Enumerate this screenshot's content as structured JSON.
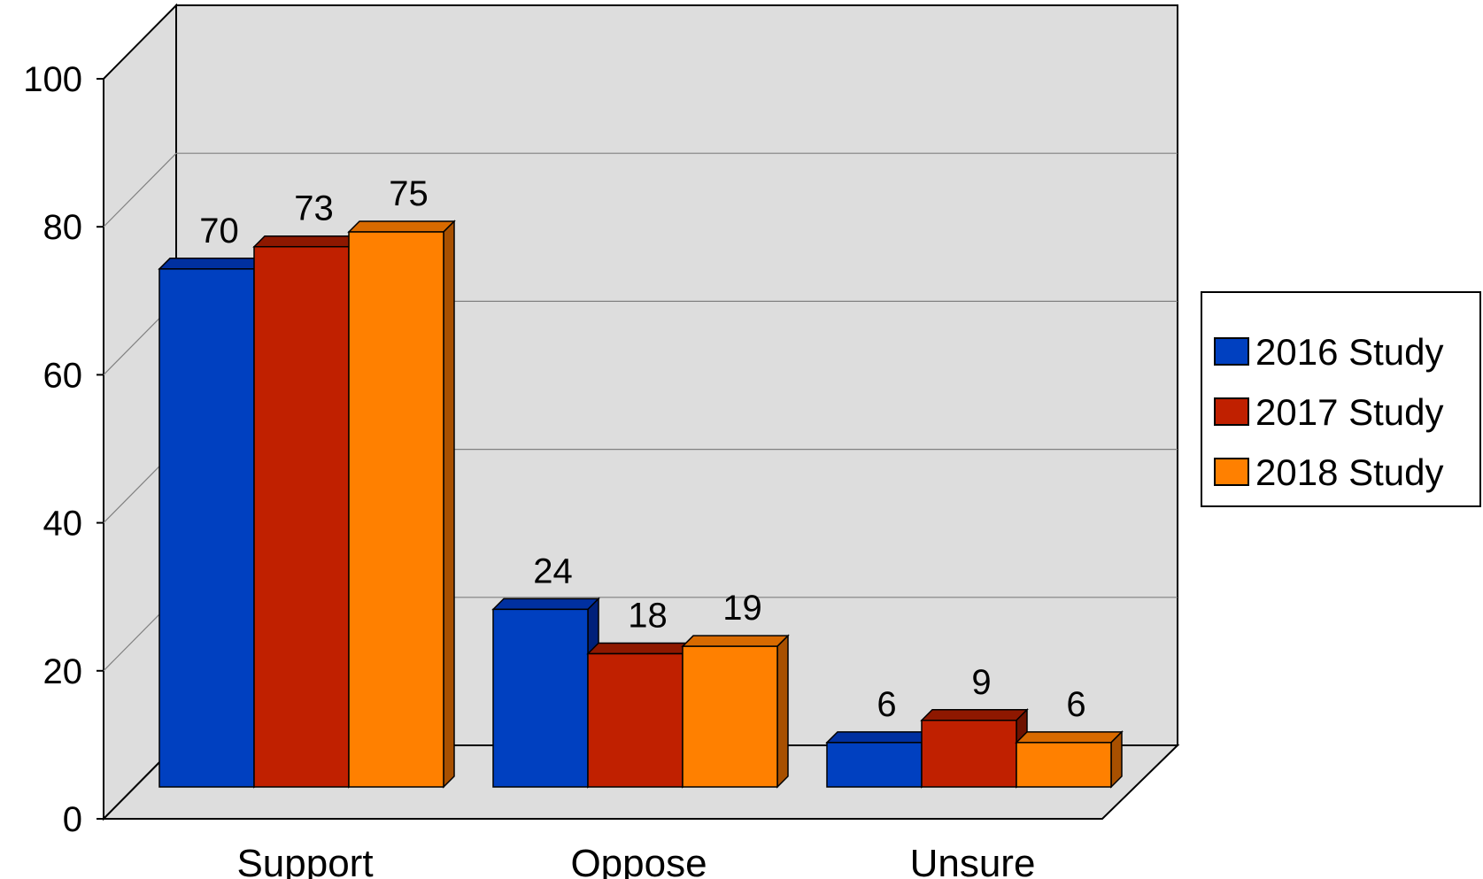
{
  "chart_data": {
    "type": "bar",
    "categories": [
      "Support",
      "Oppose",
      "Unsure"
    ],
    "series": [
      {
        "name": "2016 Study",
        "values": [
          70,
          24,
          6
        ],
        "color": "#0040C0",
        "top": "#0030A0",
        "side": "#00207A"
      },
      {
        "name": "2017 Study",
        "values": [
          73,
          18,
          9
        ],
        "color": "#C02000",
        "top": "#8E1800",
        "side": "#6E1200"
      },
      {
        "name": "2018 Study",
        "values": [
          75,
          19,
          6
        ],
        "color": "#FF8000",
        "top": "#D86A00",
        "side": "#A85000"
      }
    ],
    "title": "",
    "xlabel": "",
    "ylabel": "",
    "ylim": [
      0,
      100
    ],
    "yticks": [
      0,
      20,
      40,
      60,
      80,
      100
    ],
    "grid": true,
    "legend": "right",
    "style": "3d-clustered-column"
  }
}
